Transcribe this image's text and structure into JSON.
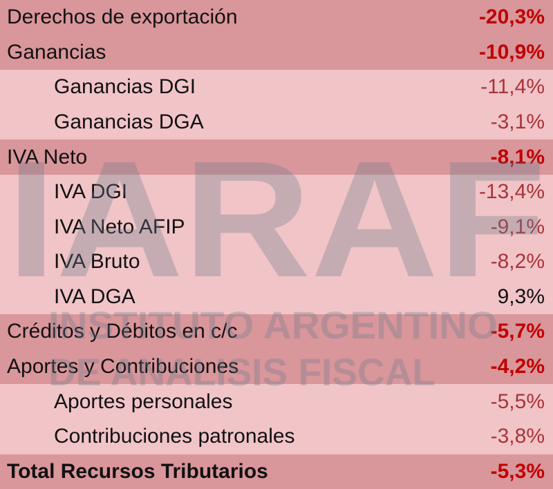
{
  "table": {
    "rows": [
      [
        "Derechos de exportación",
        "-20,3%"
      ],
      [
        "Ganancias",
        "-10,9%"
      ],
      [
        "Ganancias DGI",
        "-11,4%"
      ],
      [
        "Ganancias DGA",
        "-3,1%"
      ],
      [
        "IVA Neto",
        "-8,1%"
      ],
      [
        "IVA DGI",
        "-13,4%"
      ],
      [
        "IVA Neto AFIP",
        "-9,1%"
      ],
      [
        "IVA Bruto",
        "-8,2%"
      ],
      [
        "IVA DGA",
        "9,3%"
      ],
      [
        "Créditos y Débitos en c/c",
        "-5,7%"
      ],
      [
        "Aportes y Contribuciones",
        "-4,2%"
      ],
      [
        "Aportes personales",
        "-5,5%"
      ],
      [
        "Contribuciones patronales",
        "-3,8%"
      ],
      [
        "Total Recursos Tributarios",
        "-5,3%"
      ]
    ]
  },
  "watermark": {
    "logo": "IARAF",
    "line1": "INSTITUTO ARGENTINO",
    "line2": "DE ANALISIS FISCAL"
  }
}
